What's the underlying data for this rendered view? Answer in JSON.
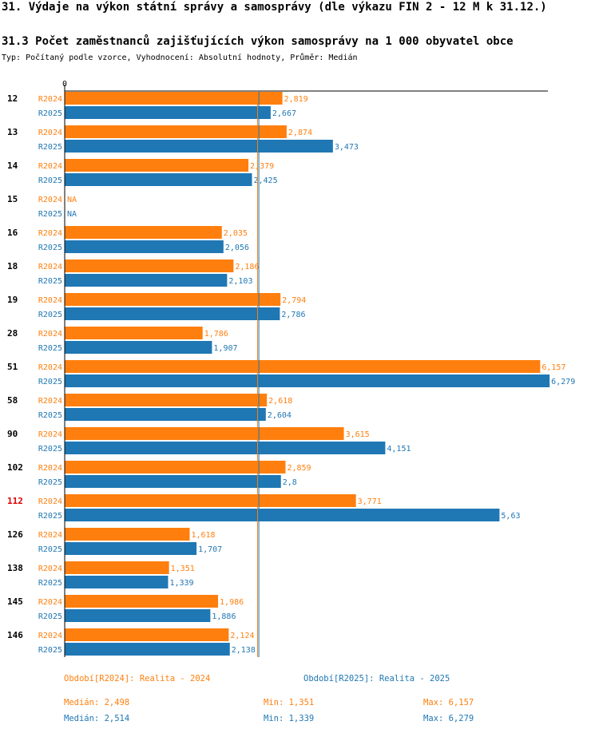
{
  "header": {
    "title": "31. Výdaje na výkon státní správy a samosprávy (dle výkazu FIN 2 - 12 M k 31.12.)",
    "subtitle": "31.3 Počet zaměstnanců zajišťujících výkon samosprávy na 1 000 obyvatel obce",
    "type_line": "Typ: Počítaný podle vzorce, Vyhodnocení: Absolutní hodnoty, Průměr: Medián"
  },
  "colors": {
    "r2024": "#ff7f0e",
    "r2025": "#1f77b4",
    "highlight": "#dd0000",
    "axis": "#000000"
  },
  "chart_data": {
    "type": "bar",
    "orientation": "horizontal",
    "axis_zero_label": "0",
    "xlim": [
      0,
      6.3
    ],
    "highlighted_category": "112",
    "categories": [
      "12",
      "13",
      "14",
      "15",
      "16",
      "18",
      "19",
      "28",
      "51",
      "58",
      "90",
      "102",
      "112",
      "126",
      "138",
      "145",
      "146"
    ],
    "series": [
      {
        "name": "R2024",
        "values": [
          2.819,
          2.874,
          2.379,
          null,
          2.035,
          2.186,
          2.794,
          1.786,
          6.157,
          2.618,
          3.615,
          2.859,
          3.771,
          1.618,
          1.351,
          1.986,
          2.124
        ],
        "labels": [
          "2,819",
          "2,874",
          "2,379",
          "NA",
          "2,035",
          "2,186",
          "2,794",
          "1,786",
          "6,157",
          "2,618",
          "3,615",
          "2,859",
          "3,771",
          "1,618",
          "1,351",
          "1,986",
          "2,124"
        ],
        "median": 2.498
      },
      {
        "name": "R2025",
        "values": [
          2.667,
          3.473,
          2.425,
          null,
          2.056,
          2.103,
          2.786,
          1.907,
          6.279,
          2.604,
          4.151,
          2.8,
          5.63,
          1.707,
          1.339,
          1.886,
          2.138
        ],
        "labels": [
          "2,667",
          "3,473",
          "2,425",
          "NA",
          "2,056",
          "2,103",
          "2,786",
          "1,907",
          "6,279",
          "2,604",
          "4,151",
          "2,8",
          "5,63",
          "1,707",
          "1,339",
          "1,886",
          "2,138"
        ],
        "median": 2.514
      }
    ]
  },
  "legend": {
    "r2024_period": "Období[R2024]: Realita - 2024",
    "r2025_period": "Období[R2025]: Realita - 2025",
    "r2024_median": "Medián: 2,498",
    "r2024_min": "Min: 1,351",
    "r2024_max": "Max: 6,157",
    "r2025_median": "Medián: 2,514",
    "r2025_min": "Min: 1,339",
    "r2025_max": "Max: 6,279"
  }
}
